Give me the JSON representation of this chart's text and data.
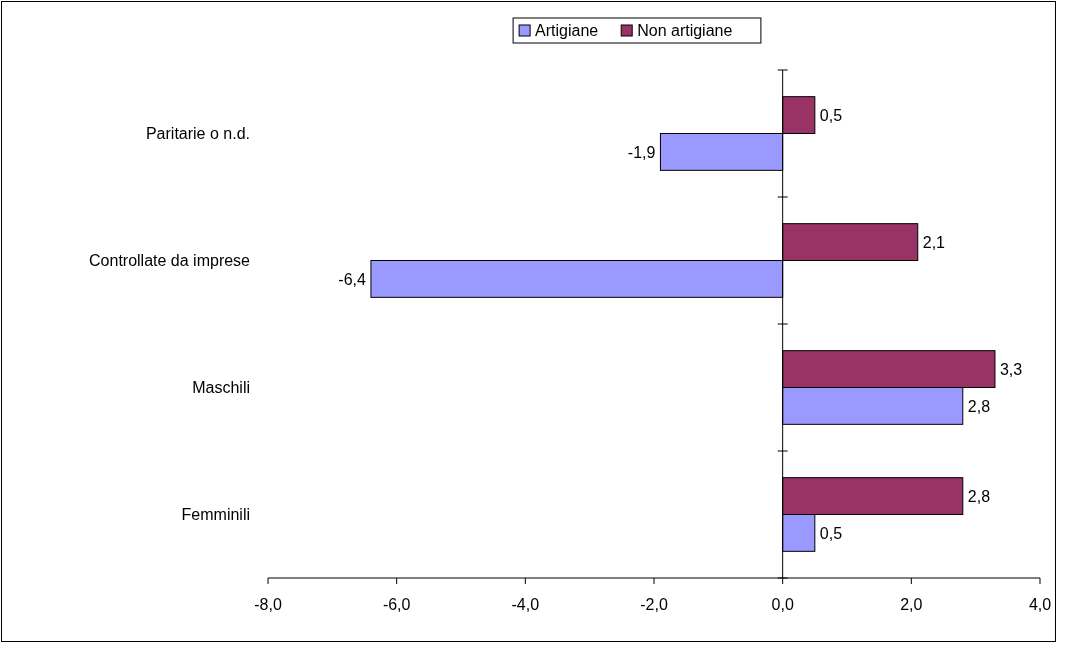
{
  "chart_data": {
    "type": "bar",
    "orientation": "horizontal",
    "categories": [
      "Paritarie o n.d.",
      "Controllate da imprese",
      "Maschili",
      "Femminili"
    ],
    "series": [
      {
        "name": "Artigiane",
        "color": "#9999ff",
        "values": [
          -1.9,
          -6.4,
          2.8,
          0.5
        ],
        "value_labels": [
          "-1,9",
          "-6,4",
          "2,8",
          "0,5"
        ]
      },
      {
        "name": "Non artigiane",
        "color": "#993366",
        "values": [
          0.5,
          2.1,
          3.3,
          2.8
        ],
        "value_labels": [
          "0,5",
          "2,1",
          "3,3",
          "2,8"
        ]
      }
    ],
    "xlim": [
      -8,
      4
    ],
    "xticks": [
      {
        "value": -8,
        "label": "-8,0"
      },
      {
        "value": -6,
        "label": "-6,0"
      },
      {
        "value": -4,
        "label": "-4,0"
      },
      {
        "value": -2,
        "label": "-2,0"
      },
      {
        "value": 0,
        "label": "0,0"
      },
      {
        "value": 2,
        "label": "2,0"
      },
      {
        "value": 4,
        "label": "4,0"
      }
    ],
    "legend": "top"
  }
}
